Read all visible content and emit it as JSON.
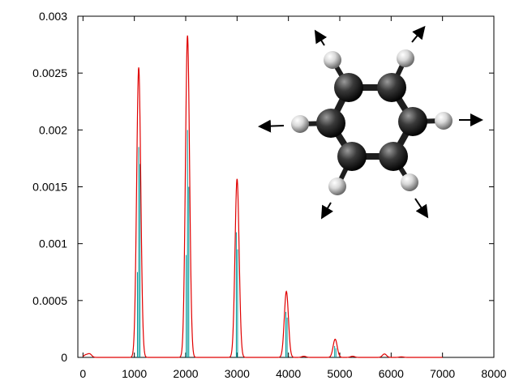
{
  "chart_data": {
    "type": "line",
    "title": "",
    "xlabel": "",
    "ylabel": "",
    "xlim": [
      -100,
      8000
    ],
    "ylim": [
      0,
      0.003
    ],
    "grid": false,
    "legend": "none",
    "x_ticks": [
      "0",
      "1000",
      "2000",
      "3000",
      "4000",
      "5000",
      "6000",
      "7000",
      "8000"
    ],
    "y_ticks": [
      "0",
      "0.0005",
      "0.001",
      "0.0015",
      "0.002",
      "0.0025",
      "0.003"
    ],
    "x_tick_values": [
      0,
      1000,
      2000,
      3000,
      4000,
      5000,
      6000,
      7000,
      8000
    ],
    "y_tick_values": [
      0,
      0.0005,
      0.001,
      0.0015,
      0.002,
      0.0025,
      0.003
    ],
    "series": [
      {
        "color": "#e00000",
        "style": "broadened-envelope",
        "peaks": [
          {
            "x": 50,
            "y": 2e-05
          },
          {
            "x": 130,
            "y": 3e-05
          },
          {
            "x": 1085,
            "y": 0.00255
          },
          {
            "x": 2035,
            "y": 0.00283
          },
          {
            "x": 3000,
            "y": 0.00157
          },
          {
            "x": 3960,
            "y": 0.00058
          },
          {
            "x": 4300,
            "y": 1e-05
          },
          {
            "x": 4910,
            "y": 0.00016
          },
          {
            "x": 5250,
            "y": 1e-05
          },
          {
            "x": 5870,
            "y": 3e-05
          },
          {
            "x": 6200,
            "y": 5e-06
          }
        ]
      },
      {
        "color": "#009a9a",
        "style": "stick-spectrum",
        "sticks": [
          {
            "x": 1060,
            "y": 0.00075
          },
          {
            "x": 1085,
            "y": 0.00185
          },
          {
            "x": 1110,
            "y": 0.0017
          },
          {
            "x": 2010,
            "y": 0.0009
          },
          {
            "x": 2035,
            "y": 0.002
          },
          {
            "x": 2060,
            "y": 0.0015
          },
          {
            "x": 2985,
            "y": 0.0011
          },
          {
            "x": 3010,
            "y": 0.00095
          },
          {
            "x": 3950,
            "y": 0.0004
          },
          {
            "x": 3975,
            "y": 0.00035
          },
          {
            "x": 4900,
            "y": 0.0001
          },
          {
            "x": 4925,
            "y": 8e-05
          }
        ]
      }
    ],
    "inset": {
      "depiction": "benzene molecule ball-and-stick model with outward displacement arrows on hydrogen atoms",
      "atom_color_carbon": "#3a3a3a",
      "atom_color_hydrogen": "#d8d8d8",
      "arrow_color": "#000000"
    }
  }
}
